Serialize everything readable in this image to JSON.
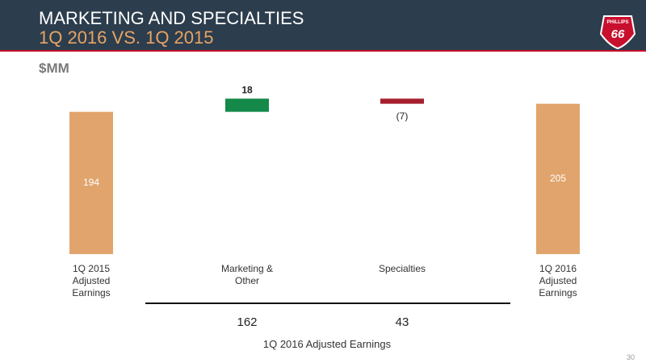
{
  "header": {
    "title": "MARKETING AND SPECIALTIES",
    "subtitle": "1Q 2016 VS. 1Q 2015",
    "logo_top": "PHILLIPS",
    "logo_number": "66"
  },
  "page_number": "30",
  "chart_data": {
    "type": "waterfall",
    "unit": "$MM",
    "categories": [
      "1Q 2015 Adjusted Earnings",
      "Marketing & Other",
      "Specialties",
      "1Q 2016 Adjusted Earnings"
    ],
    "values": [
      194,
      18,
      -7,
      205
    ],
    "value_labels": [
      "194",
      "18",
      "(7)",
      "205"
    ],
    "colors": [
      "#e0a46c",
      "#14894a",
      "#a51f2e",
      "#e0a46c"
    ],
    "ylim": [
      0,
      220
    ],
    "breakdown": {
      "values": [
        162,
        43
      ],
      "label": "1Q 2016 Adjusted Earnings"
    }
  }
}
